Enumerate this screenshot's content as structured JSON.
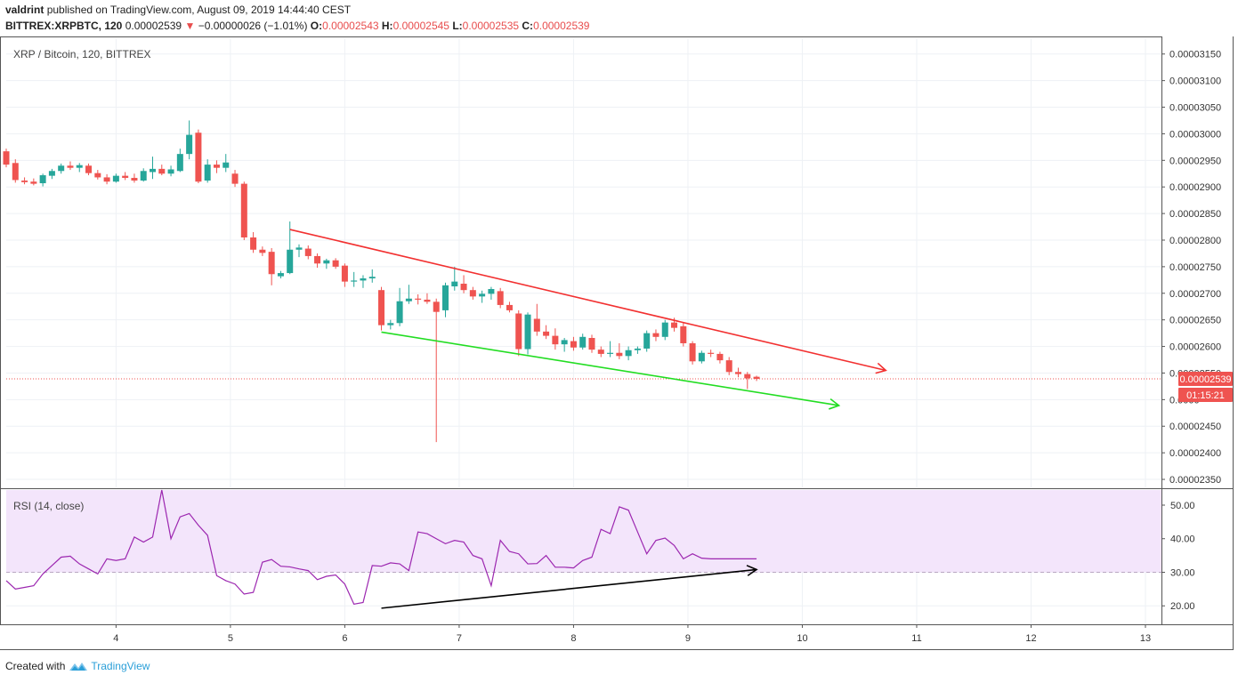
{
  "header": {
    "author": "valdrint",
    "published": "published on TradingView.com, August 09, 2019 14:44:40 CEST",
    "symbol": "BITTREX:XRPBTC, 120",
    "last": "0.00002539",
    "arrow": "▼",
    "change": "−0.00000026 (−1.01%)",
    "o_label": "O:",
    "o_value": "0.00002543",
    "h_label": "H:",
    "h_value": "0.00002545",
    "l_label": "L:",
    "l_value": "0.00002535",
    "c_label": "C:",
    "c_value": "0.00002539"
  },
  "footer": {
    "created_with": "Created with",
    "brand": "TradingView"
  },
  "colors": {
    "up": "#26a69a",
    "down": "#ef5350",
    "resistance": "#f23030",
    "support": "#22dd22",
    "rsi": "#9c27b0",
    "rsi_band": "#f3e5fb",
    "price_tag": "#ef5350"
  },
  "chart_data": [
    {
      "type": "candlestick",
      "title": "XRP / Bitcoin, 120, BITTREX",
      "x_ticks": [
        {
          "x": 4,
          "label": "4"
        },
        {
          "x": 5,
          "label": "5"
        },
        {
          "x": 6,
          "label": "6"
        },
        {
          "x": 7,
          "label": "7"
        },
        {
          "x": 8,
          "label": "8"
        },
        {
          "x": 9,
          "label": "9"
        },
        {
          "x": 10,
          "label": "10"
        },
        {
          "x": 11,
          "label": "11"
        },
        {
          "x": 12,
          "label": "12"
        },
        {
          "x": 13,
          "label": "13"
        }
      ],
      "xlim": [
        3.04,
        13.14
      ],
      "ylim": [
        2.335e-05,
        3.178e-05
      ],
      "y_ticks": [
        {
          "v": 2.35e-05,
          "label": "0.00002350"
        },
        {
          "v": 2.4e-05,
          "label": "0.00002400"
        },
        {
          "v": 2.45e-05,
          "label": "0.00002450"
        },
        {
          "v": 2.5e-05,
          "label": "0.0000"
        },
        {
          "v": 2.55e-05,
          "label": "0.00002550"
        },
        {
          "v": 2.6e-05,
          "label": "0.00002600"
        },
        {
          "v": 2.65e-05,
          "label": "0.00002650"
        },
        {
          "v": 2.7e-05,
          "label": "0.00002700"
        },
        {
          "v": 2.75e-05,
          "label": "0.00002750"
        },
        {
          "v": 2.8e-05,
          "label": "0.00002800"
        },
        {
          "v": 2.85e-05,
          "label": "0.00002850"
        },
        {
          "v": 2.9e-05,
          "label": "0.00002900"
        },
        {
          "v": 2.95e-05,
          "label": "0.00002950"
        },
        {
          "v": 3e-05,
          "label": "0.00003000"
        },
        {
          "v": 3.05e-05,
          "label": "0.00003050"
        },
        {
          "v": 3.1e-05,
          "label": "0.00003100"
        },
        {
          "v": 3.15e-05,
          "label": "0.00003150"
        }
      ],
      "last_price": 2.539e-05,
      "last_price_label": "0.00002539",
      "countdown_label": "01:15:21",
      "candles": [
        {
          "t": 3.04,
          "o": 2.967,
          "h": 2.972,
          "l": 2.937,
          "c": 2.942
        },
        {
          "t": 3.12,
          "o": 2.945,
          "h": 2.952,
          "l": 2.908,
          "c": 2.913
        },
        {
          "t": 3.2,
          "o": 2.912,
          "h": 2.918,
          "l": 2.905,
          "c": 2.909
        },
        {
          "t": 3.28,
          "o": 2.91,
          "h": 2.916,
          "l": 2.903,
          "c": 2.906
        },
        {
          "t": 3.36,
          "o": 2.907,
          "h": 2.925,
          "l": 2.901,
          "c": 2.922
        },
        {
          "t": 3.44,
          "o": 2.921,
          "h": 2.934,
          "l": 2.915,
          "c": 2.93
        },
        {
          "t": 3.52,
          "o": 2.93,
          "h": 2.944,
          "l": 2.925,
          "c": 2.94
        },
        {
          "t": 3.6,
          "o": 2.94,
          "h": 2.948,
          "l": 2.932,
          "c": 2.936
        },
        {
          "t": 3.68,
          "o": 2.936,
          "h": 2.945,
          "l": 2.928,
          "c": 2.941
        },
        {
          "t": 3.76,
          "o": 2.94,
          "h": 2.944,
          "l": 2.922,
          "c": 2.926
        },
        {
          "t": 3.84,
          "o": 2.926,
          "h": 2.932,
          "l": 2.914,
          "c": 2.918
        },
        {
          "t": 3.92,
          "o": 2.918,
          "h": 2.924,
          "l": 2.905,
          "c": 2.91
        },
        {
          "t": 4.0,
          "o": 2.91,
          "h": 2.925,
          "l": 2.908,
          "c": 2.921
        },
        {
          "t": 4.08,
          "o": 2.921,
          "h": 2.928,
          "l": 2.913,
          "c": 2.917
        },
        {
          "t": 4.16,
          "o": 2.917,
          "h": 2.925,
          "l": 2.908,
          "c": 2.912
        },
        {
          "t": 4.24,
          "o": 2.912,
          "h": 2.935,
          "l": 2.91,
          "c": 2.93
        },
        {
          "t": 4.32,
          "o": 2.928,
          "h": 2.957,
          "l": 2.915,
          "c": 2.934
        },
        {
          "t": 4.4,
          "o": 2.934,
          "h": 2.942,
          "l": 2.922,
          "c": 2.925
        },
        {
          "t": 4.48,
          "o": 2.925,
          "h": 2.94,
          "l": 2.92,
          "c": 2.933
        },
        {
          "t": 4.56,
          "o": 2.93,
          "h": 2.972,
          "l": 2.928,
          "c": 2.962
        },
        {
          "t": 4.64,
          "o": 2.962,
          "h": 3.025,
          "l": 2.952,
          "c": 2.998
        },
        {
          "t": 4.72,
          "o": 3.002,
          "h": 3.008,
          "l": 2.907,
          "c": 2.91
        },
        {
          "t": 4.8,
          "o": 2.912,
          "h": 2.952,
          "l": 2.908,
          "c": 2.942
        },
        {
          "t": 4.88,
          "o": 2.942,
          "h": 2.95,
          "l": 2.926,
          "c": 2.936
        },
        {
          "t": 4.96,
          "o": 2.936,
          "h": 2.962,
          "l": 2.928,
          "c": 2.946
        },
        {
          "t": 5.04,
          "o": 2.925,
          "h": 2.932,
          "l": 2.9,
          "c": 2.906
        },
        {
          "t": 5.12,
          "o": 2.906,
          "h": 2.91,
          "l": 2.8,
          "c": 2.805
        },
        {
          "t": 5.2,
          "o": 2.805,
          "h": 2.815,
          "l": 2.776,
          "c": 2.782
        },
        {
          "t": 5.28,
          "o": 2.782,
          "h": 2.788,
          "l": 2.77,
          "c": 2.776
        },
        {
          "t": 5.36,
          "o": 2.778,
          "h": 2.785,
          "l": 2.715,
          "c": 2.736
        },
        {
          "t": 5.44,
          "o": 2.732,
          "h": 2.742,
          "l": 2.728,
          "c": 2.738
        },
        {
          "t": 5.52,
          "o": 2.738,
          "h": 2.835,
          "l": 2.736,
          "c": 2.782
        },
        {
          "t": 5.6,
          "o": 2.782,
          "h": 2.792,
          "l": 2.768,
          "c": 2.786
        },
        {
          "t": 5.68,
          "o": 2.784,
          "h": 2.79,
          "l": 2.764,
          "c": 2.77
        },
        {
          "t": 5.76,
          "o": 2.77,
          "h": 2.775,
          "l": 2.748,
          "c": 2.756
        },
        {
          "t": 5.84,
          "o": 2.756,
          "h": 2.765,
          "l": 2.746,
          "c": 2.762
        },
        {
          "t": 5.92,
          "o": 2.762,
          "h": 2.766,
          "l": 2.746,
          "c": 2.75
        },
        {
          "t": 6.0,
          "o": 2.752,
          "h": 2.756,
          "l": 2.712,
          "c": 2.722
        },
        {
          "t": 6.08,
          "o": 2.722,
          "h": 2.74,
          "l": 2.712,
          "c": 2.724
        },
        {
          "t": 6.16,
          "o": 2.724,
          "h": 2.734,
          "l": 2.71,
          "c": 2.728
        },
        {
          "t": 6.24,
          "o": 2.728,
          "h": 2.745,
          "l": 2.72,
          "c": 2.731
        },
        {
          "t": 6.32,
          "o": 2.706,
          "h": 2.712,
          "l": 2.63,
          "c": 2.64
        },
        {
          "t": 6.4,
          "o": 2.64,
          "h": 2.65,
          "l": 2.632,
          "c": 2.644
        },
        {
          "t": 6.48,
          "o": 2.644,
          "h": 2.71,
          "l": 2.638,
          "c": 2.685
        },
        {
          "t": 6.56,
          "o": 2.685,
          "h": 2.716,
          "l": 2.68,
          "c": 2.69
        },
        {
          "t": 6.64,
          "o": 2.69,
          "h": 2.698,
          "l": 2.679,
          "c": 2.688
        },
        {
          "t": 6.72,
          "o": 2.688,
          "h": 2.7,
          "l": 2.68,
          "c": 2.684
        },
        {
          "t": 6.8,
          "o": 2.684,
          "h": 2.69,
          "l": 2.42,
          "c": 2.665
        },
        {
          "t": 6.88,
          "o": 2.668,
          "h": 2.72,
          "l": 2.655,
          "c": 2.715
        },
        {
          "t": 6.96,
          "o": 2.713,
          "h": 2.75,
          "l": 2.705,
          "c": 2.722
        },
        {
          "t": 7.04,
          "o": 2.718,
          "h": 2.734,
          "l": 2.7,
          "c": 2.706
        },
        {
          "t": 7.12,
          "o": 2.706,
          "h": 2.712,
          "l": 2.688,
          "c": 2.694
        },
        {
          "t": 7.2,
          "o": 2.694,
          "h": 2.705,
          "l": 2.682,
          "c": 2.699
        },
        {
          "t": 7.28,
          "o": 2.699,
          "h": 2.712,
          "l": 2.688,
          "c": 2.708
        },
        {
          "t": 7.36,
          "o": 2.704,
          "h": 2.71,
          "l": 2.672,
          "c": 2.678
        },
        {
          "t": 7.44,
          "o": 2.678,
          "h": 2.684,
          "l": 2.664,
          "c": 2.668
        },
        {
          "t": 7.52,
          "o": 2.662,
          "h": 2.668,
          "l": 2.582,
          "c": 2.595
        },
        {
          "t": 7.6,
          "o": 2.595,
          "h": 2.664,
          "l": 2.585,
          "c": 2.66
        },
        {
          "t": 7.68,
          "o": 2.652,
          "h": 2.68,
          "l": 2.62,
          "c": 2.628
        },
        {
          "t": 7.76,
          "o": 2.628,
          "h": 2.64,
          "l": 2.614,
          "c": 2.62
        },
        {
          "t": 7.84,
          "o": 2.62,
          "h": 2.634,
          "l": 2.594,
          "c": 2.604
        },
        {
          "t": 7.92,
          "o": 2.604,
          "h": 2.616,
          "l": 2.59,
          "c": 2.612
        },
        {
          "t": 8.0,
          "o": 2.61,
          "h": 2.618,
          "l": 2.592,
          "c": 2.598
        },
        {
          "t": 8.08,
          "o": 2.598,
          "h": 2.624,
          "l": 2.594,
          "c": 2.618
        },
        {
          "t": 8.16,
          "o": 2.616,
          "h": 2.622,
          "l": 2.588,
          "c": 2.594
        },
        {
          "t": 8.24,
          "o": 2.594,
          "h": 2.6,
          "l": 2.58,
          "c": 2.586
        },
        {
          "t": 8.32,
          "o": 2.586,
          "h": 2.61,
          "l": 2.58,
          "c": 2.588
        },
        {
          "t": 8.4,
          "o": 2.588,
          "h": 2.606,
          "l": 2.576,
          "c": 2.582
        },
        {
          "t": 8.48,
          "o": 2.582,
          "h": 2.6,
          "l": 2.574,
          "c": 2.593
        },
        {
          "t": 8.56,
          "o": 2.593,
          "h": 2.6,
          "l": 2.586,
          "c": 2.596
        },
        {
          "t": 8.64,
          "o": 2.596,
          "h": 2.63,
          "l": 2.59,
          "c": 2.625
        },
        {
          "t": 8.72,
          "o": 2.625,
          "h": 2.632,
          "l": 2.61,
          "c": 2.618
        },
        {
          "t": 8.8,
          "o": 2.618,
          "h": 2.65,
          "l": 2.612,
          "c": 2.645
        },
        {
          "t": 8.88,
          "o": 2.645,
          "h": 2.654,
          "l": 2.628,
          "c": 2.635
        },
        {
          "t": 8.96,
          "o": 2.638,
          "h": 2.646,
          "l": 2.6,
          "c": 2.606
        },
        {
          "t": 9.04,
          "o": 2.606,
          "h": 2.61,
          "l": 2.566,
          "c": 2.572
        },
        {
          "t": 9.12,
          "o": 2.572,
          "h": 2.592,
          "l": 2.568,
          "c": 2.588
        },
        {
          "t": 9.2,
          "o": 2.588,
          "h": 2.594,
          "l": 2.58,
          "c": 2.586
        },
        {
          "t": 9.28,
          "o": 2.586,
          "h": 2.59,
          "l": 2.568,
          "c": 2.574
        },
        {
          "t": 9.36,
          "o": 2.574,
          "h": 2.58,
          "l": 2.546,
          "c": 2.552
        },
        {
          "t": 9.44,
          "o": 2.552,
          "h": 2.56,
          "l": 2.542,
          "c": 2.548
        },
        {
          "t": 9.52,
          "o": 2.548,
          "h": 2.552,
          "l": 2.52,
          "c": 2.54
        },
        {
          "t": 9.6,
          "o": 2.543,
          "h": 2.545,
          "l": 2.535,
          "c": 2.539
        }
      ],
      "candle_scale": 1e-05,
      "trendlines": [
        {
          "name": "resistance-line",
          "color": "#f23030",
          "from": [
            5.52,
            2.82e-05
          ],
          "to": [
            10.73,
            2.555e-05
          ],
          "arrow": true
        },
        {
          "name": "support-line",
          "color": "#22dd22",
          "from": [
            6.32,
            2.627e-05
          ],
          "to": [
            10.32,
            2.489e-05
          ],
          "arrow": true
        }
      ]
    },
    {
      "type": "line",
      "title": "RSI (14, close)",
      "ylim": [
        14.5,
        54.5
      ],
      "band": [
        30,
        54.5
      ],
      "band_line": 30,
      "y_ticks": [
        {
          "v": 20,
          "label": "20.00"
        },
        {
          "v": 30,
          "label": "30.00"
        },
        {
          "v": 40,
          "label": "40.00"
        },
        {
          "v": 50,
          "label": "50.00"
        }
      ],
      "x": [
        3.04,
        3.12,
        3.2,
        3.28,
        3.36,
        3.44,
        3.52,
        3.6,
        3.68,
        3.76,
        3.84,
        3.92,
        4.0,
        4.08,
        4.16,
        4.24,
        4.32,
        4.4,
        4.48,
        4.56,
        4.64,
        4.72,
        4.8,
        4.88,
        4.96,
        5.04,
        5.12,
        5.2,
        5.28,
        5.36,
        5.44,
        5.52,
        5.6,
        5.68,
        5.76,
        5.84,
        5.92,
        6.0,
        6.08,
        6.16,
        6.24,
        6.32,
        6.4,
        6.48,
        6.56,
        6.64,
        6.72,
        6.8,
        6.88,
        6.96,
        7.04,
        7.12,
        7.2,
        7.28,
        7.36,
        7.44,
        7.52,
        7.6,
        7.68,
        7.76,
        7.84,
        7.92,
        8.0,
        8.08,
        8.16,
        8.24,
        8.32,
        8.4,
        8.48,
        8.56,
        8.64,
        8.72,
        8.8,
        8.88,
        8.96,
        9.04,
        9.12,
        9.2,
        9.28,
        9.36,
        9.44,
        9.52,
        9.6
      ],
      "values": [
        27.5,
        25.0,
        25.5,
        26.0,
        29.5,
        32.0,
        34.5,
        34.8,
        32.5,
        31.0,
        29.5,
        34.0,
        33.5,
        34.0,
        40.5,
        39.0,
        40.5,
        54.5,
        40.0,
        46.5,
        47.5,
        44.0,
        41.0,
        29.0,
        27.5,
        26.5,
        23.5,
        24.0,
        33.0,
        33.8,
        31.8,
        31.6,
        31.0,
        30.5,
        27.8,
        28.8,
        29.2,
        26.5,
        20.5,
        21.0,
        32.0,
        31.8,
        32.8,
        32.5,
        30.5,
        42.0,
        41.5,
        40.0,
        38.5,
        39.5,
        39.0,
        35.0,
        34.0,
        26.0,
        39.5,
        36.2,
        35.5,
        32.5,
        32.6,
        35.0,
        31.5,
        31.5,
        31.3,
        33.5,
        34.5,
        42.8,
        41.5,
        49.5,
        48.5,
        42.0,
        35.5,
        39.5,
        40.2,
        38.0,
        34.0,
        35.5,
        34.2,
        34.0,
        34.0,
        34.0,
        34.0,
        34.0,
        34.0
      ],
      "trendlines": [
        {
          "name": "rsi-divergence-line",
          "color": "#000000",
          "from": [
            6.32,
            19.3
          ],
          "to": [
            9.6,
            30.8
          ],
          "arrow": true
        }
      ]
    }
  ]
}
